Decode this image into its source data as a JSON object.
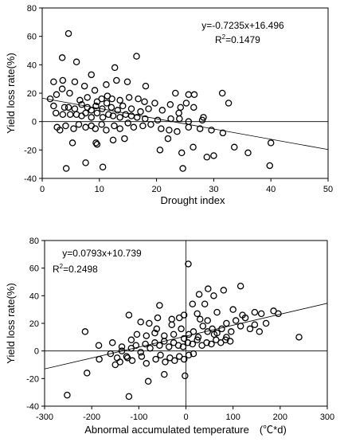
{
  "chart_data": [
    {
      "type": "scatter",
      "xlabel": "Drought index",
      "ylabel": "Yield loss rate(%)",
      "xlim": [
        0,
        50
      ],
      "ylim": [
        -40,
        80
      ],
      "xticks": [
        "0",
        "10",
        "20",
        "30",
        "40",
        "50"
      ],
      "yticks": [
        "-40",
        "-20",
        "0",
        "20",
        "40",
        "60",
        "80"
      ],
      "equation": "y=-0.7235x+16.496",
      "r2_prefix": "R",
      "r2_sup": "2",
      "r2_value": "=0.1479",
      "fit": {
        "slope": -0.7235,
        "intercept": 16.496
      },
      "zero_line_y": 0,
      "points": [
        [
          4.6,
          62
        ],
        [
          3.5,
          45
        ],
        [
          6.0,
          42
        ],
        [
          16.5,
          46
        ],
        [
          12.7,
          38
        ],
        [
          8.6,
          33
        ],
        [
          2.0,
          28
        ],
        [
          3.6,
          29
        ],
        [
          5.7,
          28
        ],
        [
          7.4,
          25
        ],
        [
          9.2,
          22
        ],
        [
          11.2,
          26
        ],
        [
          13.0,
          29
        ],
        [
          14.9,
          28
        ],
        [
          18.1,
          25
        ],
        [
          23.3,
          20
        ],
        [
          25.6,
          19
        ],
        [
          26.6,
          19
        ],
        [
          31.5,
          20
        ],
        [
          1.4,
          16
        ],
        [
          2.5,
          19
        ],
        [
          3.5,
          23
        ],
        [
          4.8,
          20
        ],
        [
          6.6,
          15
        ],
        [
          7.9,
          17
        ],
        [
          9.6,
          14
        ],
        [
          10.4,
          16
        ],
        [
          11.4,
          18
        ],
        [
          12.2,
          16
        ],
        [
          13.6,
          15
        ],
        [
          15.2,
          17
        ],
        [
          16.8,
          16
        ],
        [
          17.9,
          14
        ],
        [
          19.7,
          13
        ],
        [
          22.4,
          12
        ],
        [
          24.2,
          10
        ],
        [
          25.2,
          13
        ],
        [
          26.5,
          10
        ],
        [
          32.6,
          13
        ],
        [
          2.0,
          11
        ],
        [
          3.9,
          10
        ],
        [
          4.6,
          10
        ],
        [
          5.7,
          9
        ],
        [
          6.9,
          12
        ],
        [
          7.9,
          10
        ],
        [
          8.6,
          8
        ],
        [
          9.4,
          11
        ],
        [
          10.5,
          9
        ],
        [
          11.3,
          13
        ],
        [
          12.1,
          10
        ],
        [
          13.2,
          8
        ],
        [
          14.1,
          11
        ],
        [
          15.6,
          9
        ],
        [
          17.2,
          7
        ],
        [
          18.6,
          9
        ],
        [
          21.0,
          8
        ],
        [
          23.9,
          6
        ],
        [
          28.2,
          3
        ],
        [
          2.4,
          6
        ],
        [
          3.6,
          5
        ],
        [
          4.9,
          5
        ],
        [
          6.0,
          5
        ],
        [
          6.9,
          4
        ],
        [
          7.6,
          6
        ],
        [
          8.6,
          3
        ],
        [
          9.6,
          6
        ],
        [
          10.6,
          3
        ],
        [
          11.6,
          5
        ],
        [
          12.4,
          4
        ],
        [
          13.6,
          3
        ],
        [
          14.6,
          5
        ],
        [
          15.6,
          4
        ],
        [
          16.6,
          3
        ],
        [
          18.0,
          2
        ],
        [
          20.2,
          1
        ],
        [
          22.5,
          2
        ],
        [
          24.0,
          2
        ],
        [
          25.6,
          0
        ],
        [
          28.0,
          1
        ],
        [
          2.6,
          -4
        ],
        [
          3.1,
          -6
        ],
        [
          4.1,
          -3
        ],
        [
          5.5,
          -5
        ],
        [
          6.4,
          -2
        ],
        [
          7.6,
          -4
        ],
        [
          8.6,
          -3
        ],
        [
          9.3,
          -5
        ],
        [
          10.4,
          -2
        ],
        [
          11.2,
          -6
        ],
        [
          12.6,
          -3
        ],
        [
          13.6,
          -5
        ],
        [
          15.0,
          -1
        ],
        [
          16.0,
          -4
        ],
        [
          17.6,
          -3
        ],
        [
          19.0,
          -2
        ],
        [
          20.8,
          -5
        ],
        [
          22.2,
          -6
        ],
        [
          23.6,
          -7
        ],
        [
          25.6,
          -4
        ],
        [
          27.6,
          -5
        ],
        [
          29.6,
          -6
        ],
        [
          31.6,
          -8
        ],
        [
          5.3,
          -15
        ],
        [
          9.4,
          -15
        ],
        [
          9.6,
          -16
        ],
        [
          12.4,
          -13
        ],
        [
          14.4,
          -12
        ],
        [
          20.6,
          -20
        ],
        [
          22.0,
          -12
        ],
        [
          24.4,
          -22
        ],
        [
          26.4,
          -18
        ],
        [
          28.8,
          -25
        ],
        [
          30.0,
          -24
        ],
        [
          33.6,
          -18
        ],
        [
          36.0,
          -22
        ],
        [
          40.0,
          -15
        ],
        [
          4.2,
          -33
        ],
        [
          7.6,
          -29
        ],
        [
          10.6,
          -32
        ],
        [
          24.6,
          -33
        ],
        [
          39.8,
          -31
        ]
      ]
    },
    {
      "type": "scatter",
      "xlabel": "Abnormal accumulated temperature　(℃*d)",
      "ylabel": "Yield loss rate(%)",
      "xlim": [
        -300,
        300
      ],
      "ylim": [
        -40,
        80
      ],
      "xticks": [
        "-300",
        "-200",
        "-100",
        "0",
        "100",
        "200",
        "300"
      ],
      "yticks": [
        "-40",
        "-20",
        "0",
        "20",
        "40",
        "60",
        "80"
      ],
      "equation": "y=0.0793x+10.739",
      "r2_prefix": "R",
      "r2_sup": "2",
      "r2_value": "=0.2498",
      "fit": {
        "slope": 0.0793,
        "intercept": 10.739
      },
      "zero_line_y": 0,
      "zero_line_x": 0,
      "points": [
        [
          5,
          63
        ],
        [
          47,
          45
        ],
        [
          59,
          40
        ],
        [
          116,
          47
        ],
        [
          -56,
          33
        ],
        [
          -121,
          26
        ],
        [
          -96,
          21
        ],
        [
          -78,
          20
        ],
        [
          -62,
          16
        ],
        [
          -30,
          19
        ],
        [
          -14,
          24
        ],
        [
          -4,
          26
        ],
        [
          14,
          34
        ],
        [
          24,
          27
        ],
        [
          30,
          23
        ],
        [
          46,
          22
        ],
        [
          66,
          28
        ],
        [
          86,
          20
        ],
        [
          106,
          22
        ],
        [
          126,
          24
        ],
        [
          146,
          19
        ],
        [
          170,
          20
        ],
        [
          186,
          29
        ],
        [
          196,
          27
        ],
        [
          -214,
          14
        ],
        [
          -185,
          4
        ],
        [
          -156,
          6
        ],
        [
          -136,
          3
        ],
        [
          -116,
          8
        ],
        [
          -104,
          12
        ],
        [
          -84,
          11
        ],
        [
          -66,
          13
        ],
        [
          -46,
          11
        ],
        [
          -26,
          12
        ],
        [
          -10,
          16
        ],
        [
          -4,
          9
        ],
        [
          6,
          12
        ],
        [
          16,
          14
        ],
        [
          26,
          10
        ],
        [
          36,
          18
        ],
        [
          46,
          14
        ],
        [
          56,
          16
        ],
        [
          66,
          13
        ],
        [
          76,
          16
        ],
        [
          86,
          10
        ],
        [
          96,
          14
        ],
        [
          116,
          18
        ],
        [
          136,
          16
        ],
        [
          156,
          14
        ],
        [
          -160,
          -2
        ],
        [
          -146,
          -5
        ],
        [
          -136,
          0
        ],
        [
          -126,
          -4
        ],
        [
          -116,
          2
        ],
        [
          -106,
          4
        ],
        [
          -96,
          -1
        ],
        [
          -86,
          5
        ],
        [
          -76,
          2
        ],
        [
          -66,
          6
        ],
        [
          -56,
          4
        ],
        [
          -46,
          7
        ],
        [
          -36,
          3
        ],
        [
          -26,
          6
        ],
        [
          -16,
          4
        ],
        [
          -6,
          3
        ],
        [
          4,
          6
        ],
        [
          14,
          5
        ],
        [
          24,
          8
        ],
        [
          34,
          4
        ],
        [
          44,
          6
        ],
        [
          54,
          5
        ],
        [
          64,
          8
        ],
        [
          74,
          6
        ],
        [
          84,
          8
        ],
        [
          94,
          7
        ],
        [
          -140,
          -8
        ],
        [
          -124,
          -5
        ],
        [
          -114,
          -7
        ],
        [
          -94,
          -4
        ],
        [
          -84,
          -9
        ],
        [
          -64,
          -6
        ],
        [
          -54,
          -3
        ],
        [
          -44,
          -8
        ],
        [
          -34,
          -5
        ],
        [
          -24,
          -7
        ],
        [
          -14,
          -4
        ],
        [
          -4,
          -6
        ],
        [
          6,
          -3
        ],
        [
          16,
          -2
        ],
        [
          -210,
          -16
        ],
        [
          -80,
          -22
        ],
        [
          -46,
          -17
        ],
        [
          -2,
          -18
        ],
        [
          -121,
          -33
        ],
        [
          -252,
          -32
        ],
        [
          240,
          10
        ],
        [
          100,
          30
        ],
        [
          120,
          26
        ],
        [
          146,
          28
        ],
        [
          160,
          27
        ],
        [
          -184,
          -6
        ],
        [
          -60,
          24
        ],
        [
          -30,
          23
        ],
        [
          28,
          41
        ],
        [
          40,
          34
        ],
        [
          80,
          44
        ],
        [
          60,
          12
        ],
        [
          -150,
          -10
        ]
      ]
    }
  ]
}
